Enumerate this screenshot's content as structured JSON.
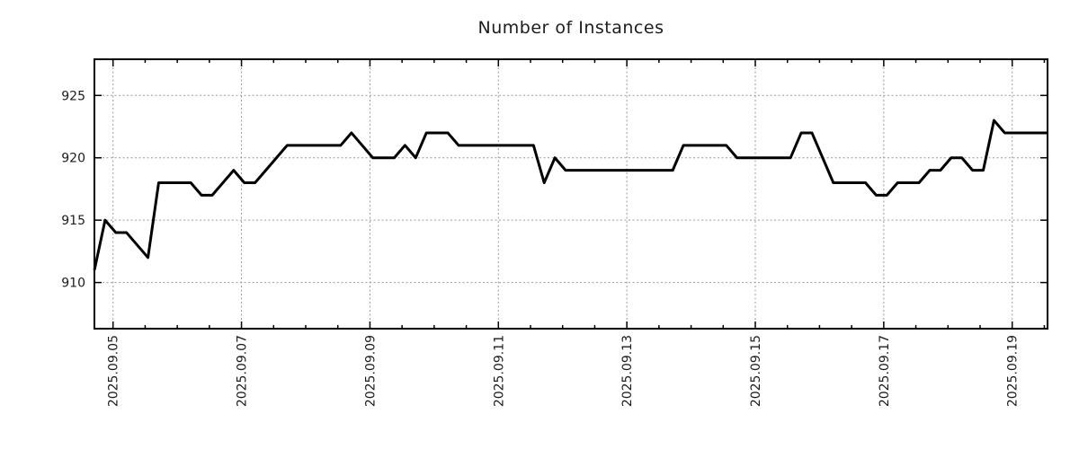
{
  "page": {
    "background_color": "#ffffff"
  },
  "chart_data": {
    "type": "line",
    "title": "Number of Instances",
    "xlabel": "",
    "ylabel": "",
    "legend": "none",
    "grid": true,
    "line_color": "#000000",
    "line_width": 3,
    "grid_color": "#9a9a9a",
    "axis_color": "#000000",
    "text_color": "#1c1c1c",
    "tick_font_size": 14,
    "x_tick_labels": [
      "2025.09.05",
      "2025.09.07",
      "2025.09.09",
      "2025.09.11",
      "2025.09.13",
      "2025.09.15",
      "2025.09.17",
      "2025.09.19"
    ],
    "x_tick_days": [
      1,
      3,
      5,
      7,
      9,
      11,
      13,
      15
    ],
    "x_minor_tick_step_days": 0.5,
    "x_range_days": [
      0.71,
      15.55
    ],
    "y_ticks": [
      910,
      915,
      920,
      925
    ],
    "y_range": [
      906.3,
      927.9
    ],
    "sample_interval_days": 0.1667,
    "values": [
      911,
      915,
      914,
      914,
      913,
      912,
      918,
      918,
      918,
      918,
      917,
      917,
      918,
      919,
      918,
      918,
      919,
      920,
      921,
      921,
      921,
      921,
      921,
      921,
      922,
      921,
      920,
      920,
      920,
      921,
      920,
      922,
      922,
      922,
      921,
      921,
      921,
      921,
      921,
      921,
      921,
      921,
      918,
      920,
      919,
      919,
      919,
      919,
      919,
      919,
      919,
      919,
      919,
      919,
      919,
      921,
      921,
      921,
      921,
      921,
      920,
      920,
      920,
      920,
      920,
      920,
      922,
      922,
      920,
      918,
      918,
      918,
      918,
      917,
      917,
      918,
      918,
      918,
      919,
      919,
      920,
      920,
      919,
      919,
      923,
      922,
      922,
      922,
      922,
      922
    ]
  }
}
